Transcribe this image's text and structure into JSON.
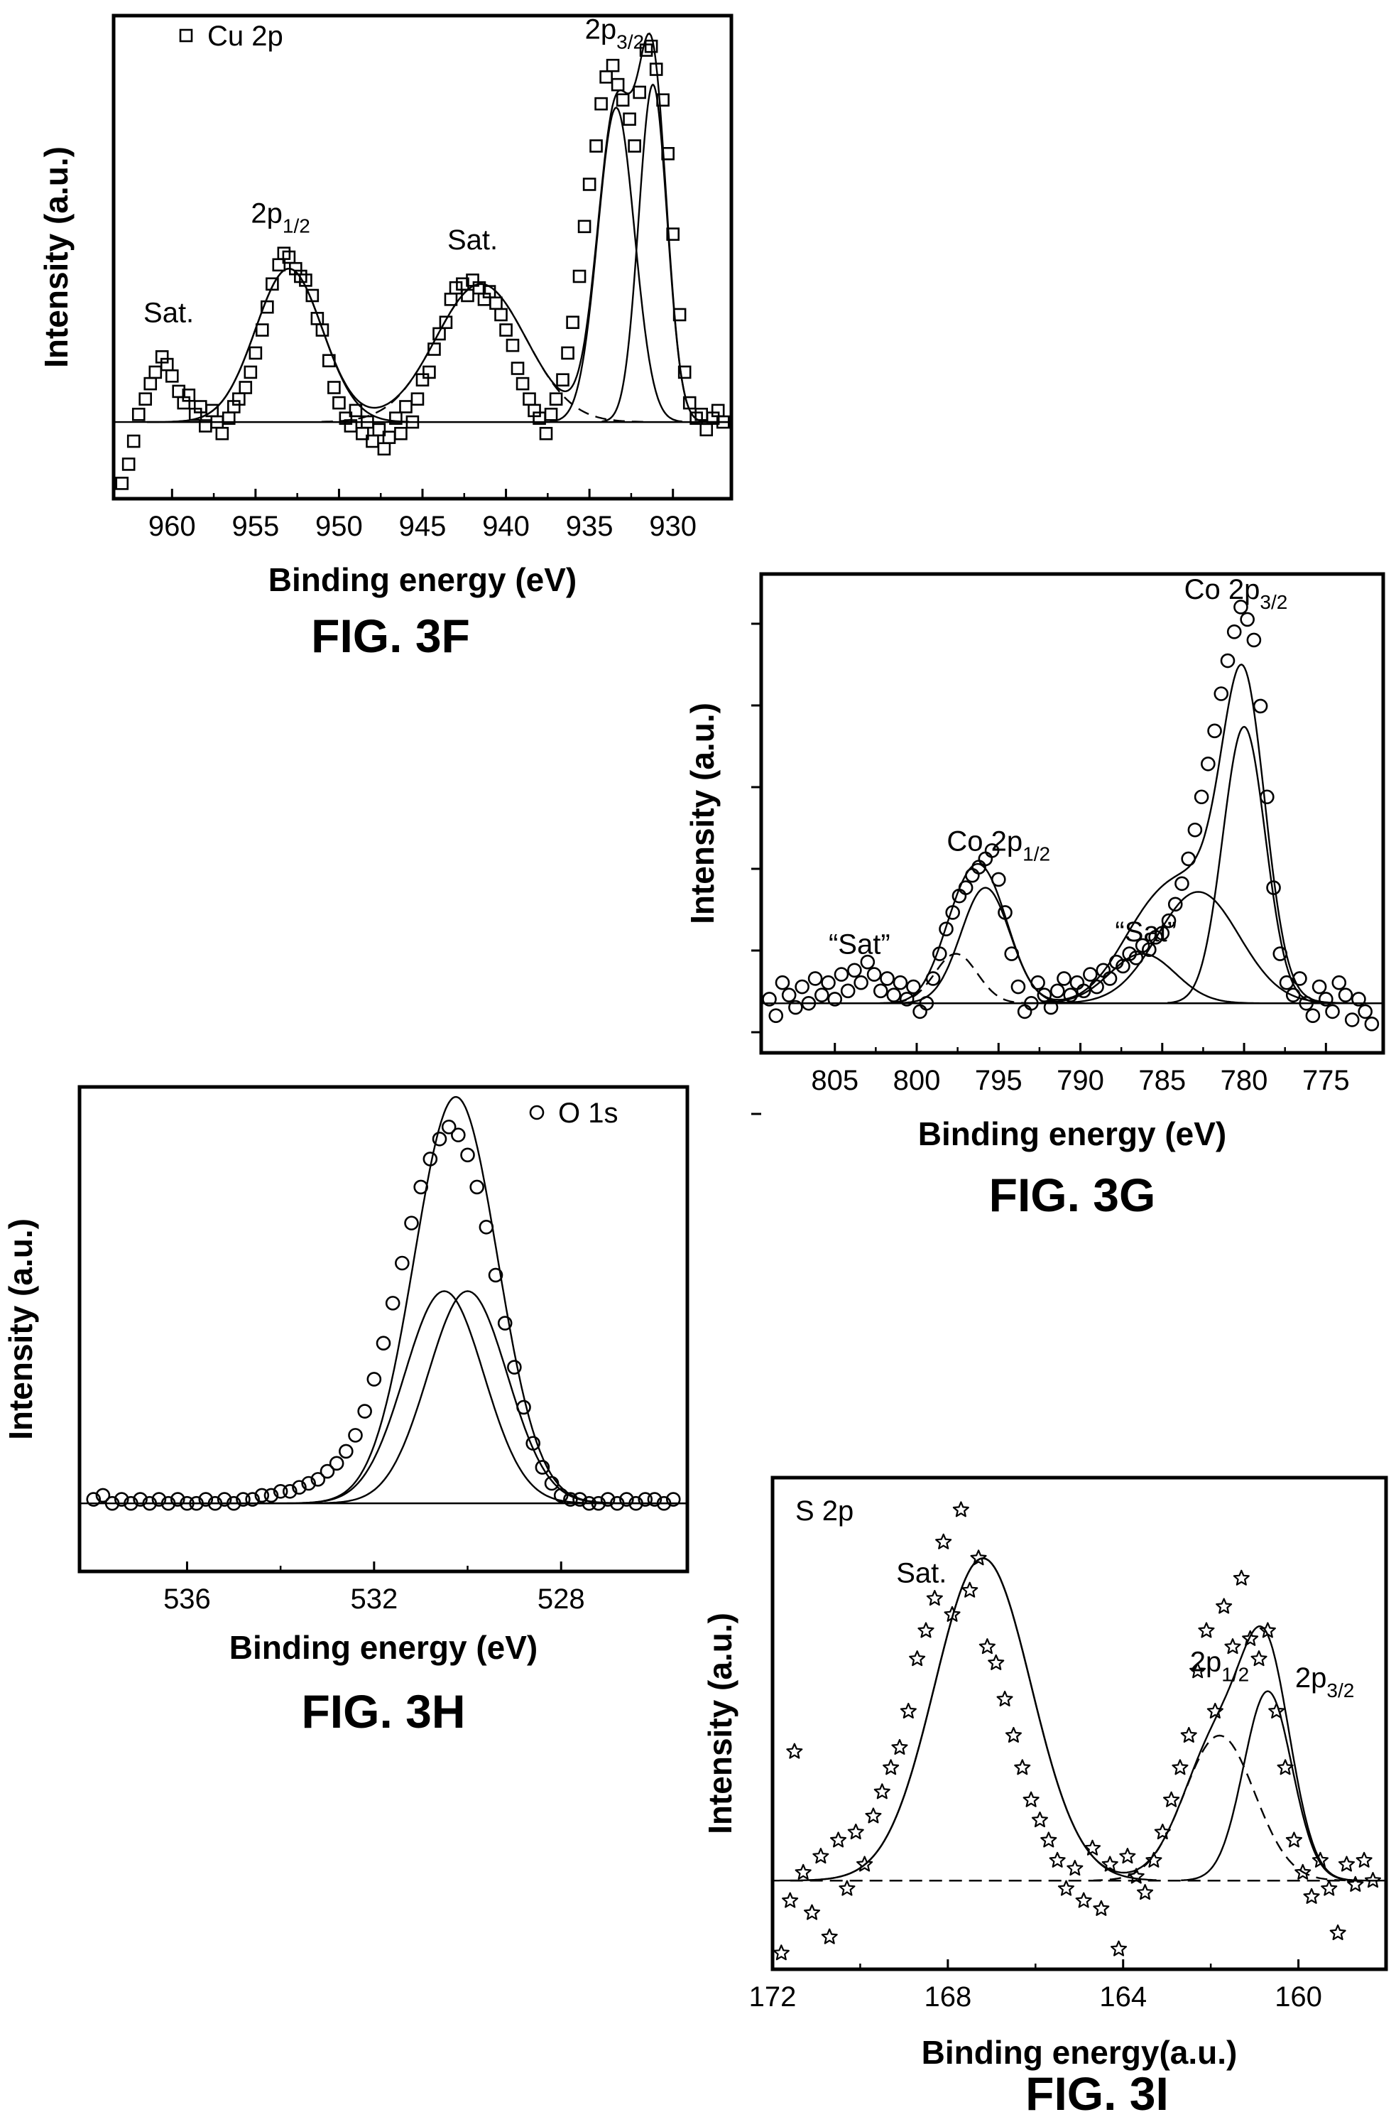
{
  "charts": [
    {
      "id": "3F",
      "figure_label": "FIG. 3F",
      "chart_data": {
        "type": "scatter",
        "xlabel": "Binding energy (eV)",
        "ylabel": "Intensity (a.u.)",
        "x_reversed": true,
        "xlim": [
          963.5,
          926.5
        ],
        "ylim": [
          -0.2,
          1.06
        ],
        "xticks": [
          "960",
          "955",
          "950",
          "945",
          "940",
          "935",
          "930"
        ],
        "legend": {
          "marker": "square",
          "text": "Cu 2p"
        },
        "annotations": [
          {
            "text": "Sat.",
            "x": 960.2,
            "y": 0.26
          },
          {
            "text": "2p",
            "sub": "1/2",
            "x": 953.5,
            "y": 0.52
          },
          {
            "text": "Sat.",
            "x": 942.0,
            "y": 0.45
          },
          {
            "text": "2p",
            "sub": "3/2",
            "x": 933.5,
            "y": 1.0
          }
        ],
        "baseline": 0,
        "peaks": [
          {
            "center": 953.0,
            "height": 0.4,
            "sigma": 2.0,
            "style": "solid"
          },
          {
            "center": 941.5,
            "height": 0.36,
            "sigma": 2.7,
            "style": "dashed"
          },
          {
            "center": 933.4,
            "height": 0.82,
            "sigma": 1.1,
            "style": "solid"
          },
          {
            "center": 931.2,
            "height": 0.88,
            "sigma": 0.85,
            "style": "solid"
          }
        ],
        "series": [
          {
            "marker": "square",
            "x": [
              963.0,
              962.6,
              962.3,
              962.0,
              961.6,
              961.3,
              961.0,
              960.6,
              960.3,
              960.0,
              959.6,
              959.3,
              959.0,
              958.6,
              958.3,
              958.0,
              957.6,
              957.3,
              957.0,
              956.6,
              956.3,
              956.0,
              955.6,
              955.3,
              955.0,
              954.6,
              954.3,
              954.0,
              953.6,
              953.3,
              953.0,
              952.6,
              952.3,
              952.0,
              951.6,
              951.3,
              951.0,
              950.6,
              950.3,
              950.0,
              949.6,
              949.3,
              949.0,
              948.6,
              948.3,
              948.0,
              947.6,
              947.3,
              947.0,
              946.6,
              946.3,
              946.0,
              945.6,
              945.3,
              945.0,
              944.6,
              944.3,
              944.0,
              943.6,
              943.3,
              943.0,
              942.6,
              942.3,
              942.0,
              941.6,
              941.3,
              941.0,
              940.6,
              940.3,
              940.0,
              939.6,
              939.3,
              939.0,
              938.6,
              938.3,
              938.0,
              937.6,
              937.3,
              937.0,
              936.6,
              936.3,
              936.0,
              935.6,
              935.3,
              935.0,
              934.6,
              934.3,
              934.0,
              933.6,
              933.3,
              933.0,
              932.6,
              932.3,
              932.0,
              931.6,
              931.3,
              931.0,
              930.6,
              930.3,
              930.0,
              929.6,
              929.3,
              929.0,
              928.6,
              928.3,
              928.0,
              927.6,
              927.3,
              927.0
            ],
            "y": [
              -0.16,
              -0.11,
              -0.05,
              0.02,
              0.06,
              0.1,
              0.13,
              0.17,
              0.15,
              0.12,
              0.08,
              0.05,
              0.07,
              0.02,
              0.04,
              -0.01,
              0.03,
              0.0,
              -0.03,
              0.01,
              0.04,
              0.06,
              0.09,
              0.13,
              0.18,
              0.24,
              0.3,
              0.36,
              0.41,
              0.44,
              0.43,
              0.4,
              0.38,
              0.37,
              0.33,
              0.27,
              0.24,
              0.16,
              0.09,
              0.05,
              0.01,
              -0.01,
              0.03,
              -0.03,
              0.0,
              -0.05,
              -0.02,
              -0.07,
              -0.04,
              0.01,
              -0.03,
              0.04,
              0.0,
              0.06,
              0.11,
              0.13,
              0.19,
              0.23,
              0.26,
              0.32,
              0.35,
              0.36,
              0.33,
              0.37,
              0.35,
              0.32,
              0.34,
              0.31,
              0.28,
              0.24,
              0.2,
              0.14,
              0.1,
              0.06,
              0.03,
              0.01,
              -0.03,
              0.02,
              0.06,
              0.11,
              0.18,
              0.26,
              0.38,
              0.51,
              0.62,
              0.72,
              0.83,
              0.9,
              0.93,
              0.88,
              0.84,
              0.79,
              0.72,
              0.86,
              0.97,
              0.98,
              0.92,
              0.84,
              0.7,
              0.49,
              0.28,
              0.13,
              0.05,
              0.01,
              0.02,
              -0.02,
              0.01,
              0.03,
              0.0
            ]
          }
        ]
      }
    },
    {
      "id": "3G",
      "figure_label": "FIG. 3G",
      "chart_data": {
        "type": "scatter",
        "xlabel": "Binding energy (eV)",
        "ylabel": "Intensity (a.u.)",
        "x_reversed": true,
        "xlim": [
          809.5,
          771.5
        ],
        "ylim": [
          -0.12,
          1.04
        ],
        "xticks": [
          "805",
          "800",
          "795",
          "790",
          "785",
          "780",
          "775"
        ],
        "annotations": [
          {
            "text": "“Sat”",
            "x": 803.5,
            "y": 0.12
          },
          {
            "text": "Co 2p",
            "sub": "1/2",
            "x": 795.0,
            "y": 0.37
          },
          {
            "text": "“Sat”",
            "x": 786.0,
            "y": 0.15
          },
          {
            "text": "Co 2p",
            "sub": "3/2",
            "x": 780.5,
            "y": 0.98
          }
        ],
        "baseline": 0,
        "peaks": [
          {
            "center": 795.8,
            "height": 0.28,
            "sigma": 1.5,
            "style": "solid"
          },
          {
            "center": 797.6,
            "height": 0.12,
            "sigma": 1.3,
            "style": "dashed"
          },
          {
            "center": 780.0,
            "height": 0.67,
            "sigma": 1.3,
            "style": "solid"
          },
          {
            "center": 782.8,
            "height": 0.27,
            "sigma": 2.5,
            "style": "solid"
          },
          {
            "center": 786.2,
            "height": 0.12,
            "sigma": 2.0,
            "style": "solid"
          }
        ],
        "series": [
          {
            "marker": "circle",
            "x": [
              809.0,
              808.6,
              808.2,
              807.8,
              807.4,
              807.0,
              806.6,
              806.2,
              805.8,
              805.4,
              805.0,
              804.6,
              804.2,
              803.8,
              803.4,
              803.0,
              802.6,
              802.2,
              801.8,
              801.4,
              801.0,
              800.6,
              800.2,
              799.8,
              799.4,
              799.0,
              798.6,
              798.2,
              797.8,
              797.4,
              797.0,
              796.6,
              796.2,
              795.8,
              795.4,
              795.0,
              794.6,
              794.2,
              793.8,
              793.4,
              793.0,
              792.6,
              792.2,
              791.8,
              791.4,
              791.0,
              790.6,
              790.2,
              789.8,
              789.4,
              789.0,
              788.6,
              788.2,
              787.8,
              787.4,
              787.0,
              786.6,
              786.2,
              785.8,
              785.4,
              785.0,
              784.6,
              784.2,
              783.8,
              783.4,
              783.0,
              782.6,
              782.2,
              781.8,
              781.4,
              781.0,
              780.6,
              780.2,
              779.8,
              779.4,
              779.0,
              778.6,
              778.2,
              777.8,
              777.4,
              777.0,
              776.6,
              776.2,
              775.8,
              775.4,
              775.0,
              774.6,
              774.2,
              773.8,
              773.4,
              773.0,
              772.6,
              772.2
            ],
            "y": [
              0.01,
              -0.03,
              0.05,
              0.02,
              -0.01,
              0.04,
              0.0,
              0.06,
              0.02,
              0.05,
              0.01,
              0.07,
              0.03,
              0.08,
              0.05,
              0.1,
              0.07,
              0.03,
              0.06,
              0.02,
              0.05,
              0.01,
              0.04,
              -0.02,
              0.0,
              0.06,
              0.12,
              0.18,
              0.22,
              0.26,
              0.28,
              0.31,
              0.33,
              0.35,
              0.37,
              0.3,
              0.22,
              0.12,
              0.04,
              -0.02,
              0.0,
              0.05,
              0.02,
              -0.01,
              0.03,
              0.06,
              0.02,
              0.05,
              0.03,
              0.07,
              0.04,
              0.08,
              0.06,
              0.1,
              0.09,
              0.12,
              0.11,
              0.14,
              0.13,
              0.16,
              0.17,
              0.2,
              0.24,
              0.29,
              0.35,
              0.42,
              0.5,
              0.58,
              0.66,
              0.75,
              0.83,
              0.9,
              0.96,
              0.93,
              0.88,
              0.72,
              0.5,
              0.28,
              0.12,
              0.05,
              0.02,
              0.06,
              0.0,
              -0.03,
              0.04,
              0.01,
              -0.02,
              0.05,
              0.02,
              -0.04,
              0.01,
              -0.02,
              -0.05
            ]
          }
        ]
      }
    },
    {
      "id": "3H",
      "figure_label": "FIG. 3H",
      "chart_data": {
        "type": "scatter",
        "xlabel": "Binding energy (eV)",
        "ylabel": "Intensity (a.u.)",
        "x_reversed": true,
        "xlim": [
          538.3,
          525.3
        ],
        "ylim": [
          -0.17,
          1.04
        ],
        "xticks": [
          "536",
          "532",
          "528"
        ],
        "legend": {
          "marker": "circle",
          "text": "O 1s"
        },
        "annotations": [],
        "baseline": 0,
        "peaks": [
          {
            "center": 530.5,
            "height": 0.53,
            "sigma": 0.85,
            "style": "solid"
          },
          {
            "center": 530.0,
            "height": 0.53,
            "sigma": 0.85,
            "style": "solid"
          }
        ],
        "series": [
          {
            "marker": "circle",
            "x": [
              538.0,
              537.8,
              537.6,
              537.4,
              537.2,
              537.0,
              536.8,
              536.6,
              536.4,
              536.2,
              536.0,
              535.8,
              535.6,
              535.4,
              535.2,
              535.0,
              534.8,
              534.6,
              534.4,
              534.2,
              534.0,
              533.8,
              533.6,
              533.4,
              533.2,
              533.0,
              532.8,
              532.6,
              532.4,
              532.2,
              532.0,
              531.8,
              531.6,
              531.4,
              531.2,
              531.0,
              530.8,
              530.6,
              530.4,
              530.2,
              530.0,
              529.8,
              529.6,
              529.4,
              529.2,
              529.0,
              528.8,
              528.6,
              528.4,
              528.2,
              528.0,
              527.8,
              527.6,
              527.4,
              527.2,
              527.0,
              526.8,
              526.6,
              526.4,
              526.2,
              526.0,
              525.8,
              525.6
            ],
            "y": [
              0.01,
              0.02,
              0.0,
              0.01,
              0.0,
              0.01,
              0.0,
              0.01,
              0.0,
              0.01,
              0.0,
              0.0,
              0.01,
              0.0,
              0.01,
              0.0,
              0.01,
              0.01,
              0.02,
              0.02,
              0.03,
              0.03,
              0.04,
              0.05,
              0.06,
              0.08,
              0.1,
              0.13,
              0.17,
              0.23,
              0.31,
              0.4,
              0.5,
              0.6,
              0.7,
              0.79,
              0.86,
              0.91,
              0.94,
              0.92,
              0.87,
              0.79,
              0.69,
              0.57,
              0.45,
              0.34,
              0.24,
              0.15,
              0.09,
              0.05,
              0.02,
              0.01,
              0.01,
              0.0,
              0.0,
              0.01,
              0.0,
              0.01,
              0.0,
              0.01,
              0.01,
              0.0,
              0.01
            ]
          }
        ]
      }
    },
    {
      "id": "3I",
      "figure_label": "FIG. 3I",
      "chart_data": {
        "type": "scatter",
        "xlabel": "Binding energy(a.u.)",
        "ylabel": "Intensity (a.u.)",
        "x_reversed": true,
        "xlim": [
          172,
          158
        ],
        "ylim": [
          -0.22,
          1.0
        ],
        "xticks": [
          "172",
          "168",
          "164",
          "160"
        ],
        "legend": {
          "marker": "none",
          "text": "S 2p"
        },
        "annotations": [
          {
            "text": "Sat.",
            "x": 168.6,
            "y": 0.74
          },
          {
            "text": "2p",
            "sub": "1/2",
            "x": 161.8,
            "y": 0.52
          },
          {
            "text": "2p",
            "sub": "3/2",
            "x": 159.4,
            "y": 0.48
          }
        ],
        "baseline": 0,
        "peaks": [
          {
            "center": 167.2,
            "height": 0.8,
            "sigma": 1.1,
            "style": "solid"
          },
          {
            "center": 161.8,
            "height": 0.36,
            "sigma": 0.8,
            "style": "dashed"
          },
          {
            "center": 160.7,
            "height": 0.47,
            "sigma": 0.55,
            "style": "solid"
          }
        ],
        "series": [
          {
            "marker": "star",
            "x": [
              171.8,
              171.6,
              171.5,
              171.3,
              171.1,
              170.9,
              170.7,
              170.5,
              170.3,
              170.1,
              169.9,
              169.7,
              169.5,
              169.3,
              169.1,
              168.9,
              168.7,
              168.5,
              168.3,
              168.1,
              167.9,
              167.7,
              167.5,
              167.3,
              167.1,
              166.9,
              166.7,
              166.5,
              166.3,
              166.1,
              165.9,
              165.7,
              165.5,
              165.3,
              165.1,
              164.9,
              164.7,
              164.5,
              164.3,
              164.1,
              163.9,
              163.7,
              163.5,
              163.3,
              163.1,
              162.9,
              162.7,
              162.5,
              162.3,
              162.1,
              161.9,
              161.7,
              161.5,
              161.3,
              161.1,
              160.9,
              160.7,
              160.5,
              160.3,
              160.1,
              159.9,
              159.7,
              159.5,
              159.3,
              159.1,
              158.9,
              158.7,
              158.5,
              158.3
            ],
            "y": [
              -0.18,
              -0.05,
              0.32,
              0.02,
              -0.08,
              0.06,
              -0.14,
              0.1,
              -0.02,
              0.12,
              0.04,
              0.16,
              0.22,
              0.28,
              0.33,
              0.42,
              0.55,
              0.62,
              0.7,
              0.84,
              0.66,
              0.92,
              0.72,
              0.8,
              0.58,
              0.54,
              0.45,
              0.36,
              0.28,
              0.2,
              0.15,
              0.1,
              0.05,
              -0.02,
              0.03,
              -0.05,
              0.08,
              -0.07,
              0.04,
              -0.17,
              0.06,
              0.01,
              -0.03,
              0.05,
              0.12,
              0.2,
              0.28,
              0.36,
              0.52,
              0.62,
              0.42,
              0.68,
              0.58,
              0.75,
              0.6,
              0.55,
              0.62,
              0.42,
              0.28,
              0.1,
              0.02,
              -0.04,
              0.05,
              -0.02,
              -0.13,
              0.04,
              -0.01,
              0.05,
              0.0
            ]
          }
        ]
      }
    }
  ]
}
